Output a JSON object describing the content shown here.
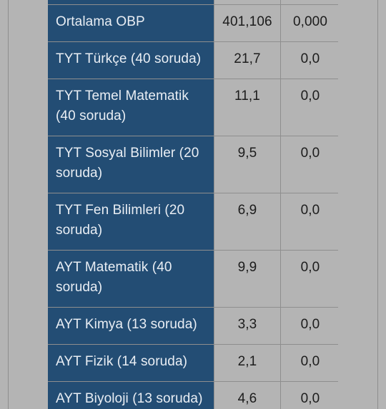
{
  "table": {
    "rows": [
      {
        "label": "",
        "value1": "",
        "value2": ""
      },
      {
        "label": "Ortalama OBP",
        "value1": "401,106",
        "value2": "0,000"
      },
      {
        "label": "TYT Türkçe (40 soruda)",
        "value1": "21,7",
        "value2": "0,0"
      },
      {
        "label": "TYT Temel Matematik (40 soruda)",
        "value1": "11,1",
        "value2": "0,0"
      },
      {
        "label": "TYT Sosyal Bilimler (20 soruda)",
        "value1": "9,5",
        "value2": "0,0"
      },
      {
        "label": "TYT Fen Bilimleri (20 soruda)",
        "value1": "6,9",
        "value2": "0,0"
      },
      {
        "label": "AYT Matematik (40 soruda)",
        "value1": "9,9",
        "value2": "0,0"
      },
      {
        "label": "AYT Kimya (13 soruda)",
        "value1": "3,3",
        "value2": "0,0"
      },
      {
        "label": "AYT Fizik (14 soruda)",
        "value1": "2,1",
        "value2": "0,0"
      },
      {
        "label": "AYT Biyoloji (13 soruda)",
        "value1": "4,6",
        "value2": "0,0"
      }
    ]
  },
  "colors": {
    "label_cell_bg": "#234d74",
    "value_cell_bg": "#b4b4b4",
    "page_bg": "#b4b4b4",
    "grid_line": "#8e8e8e"
  }
}
